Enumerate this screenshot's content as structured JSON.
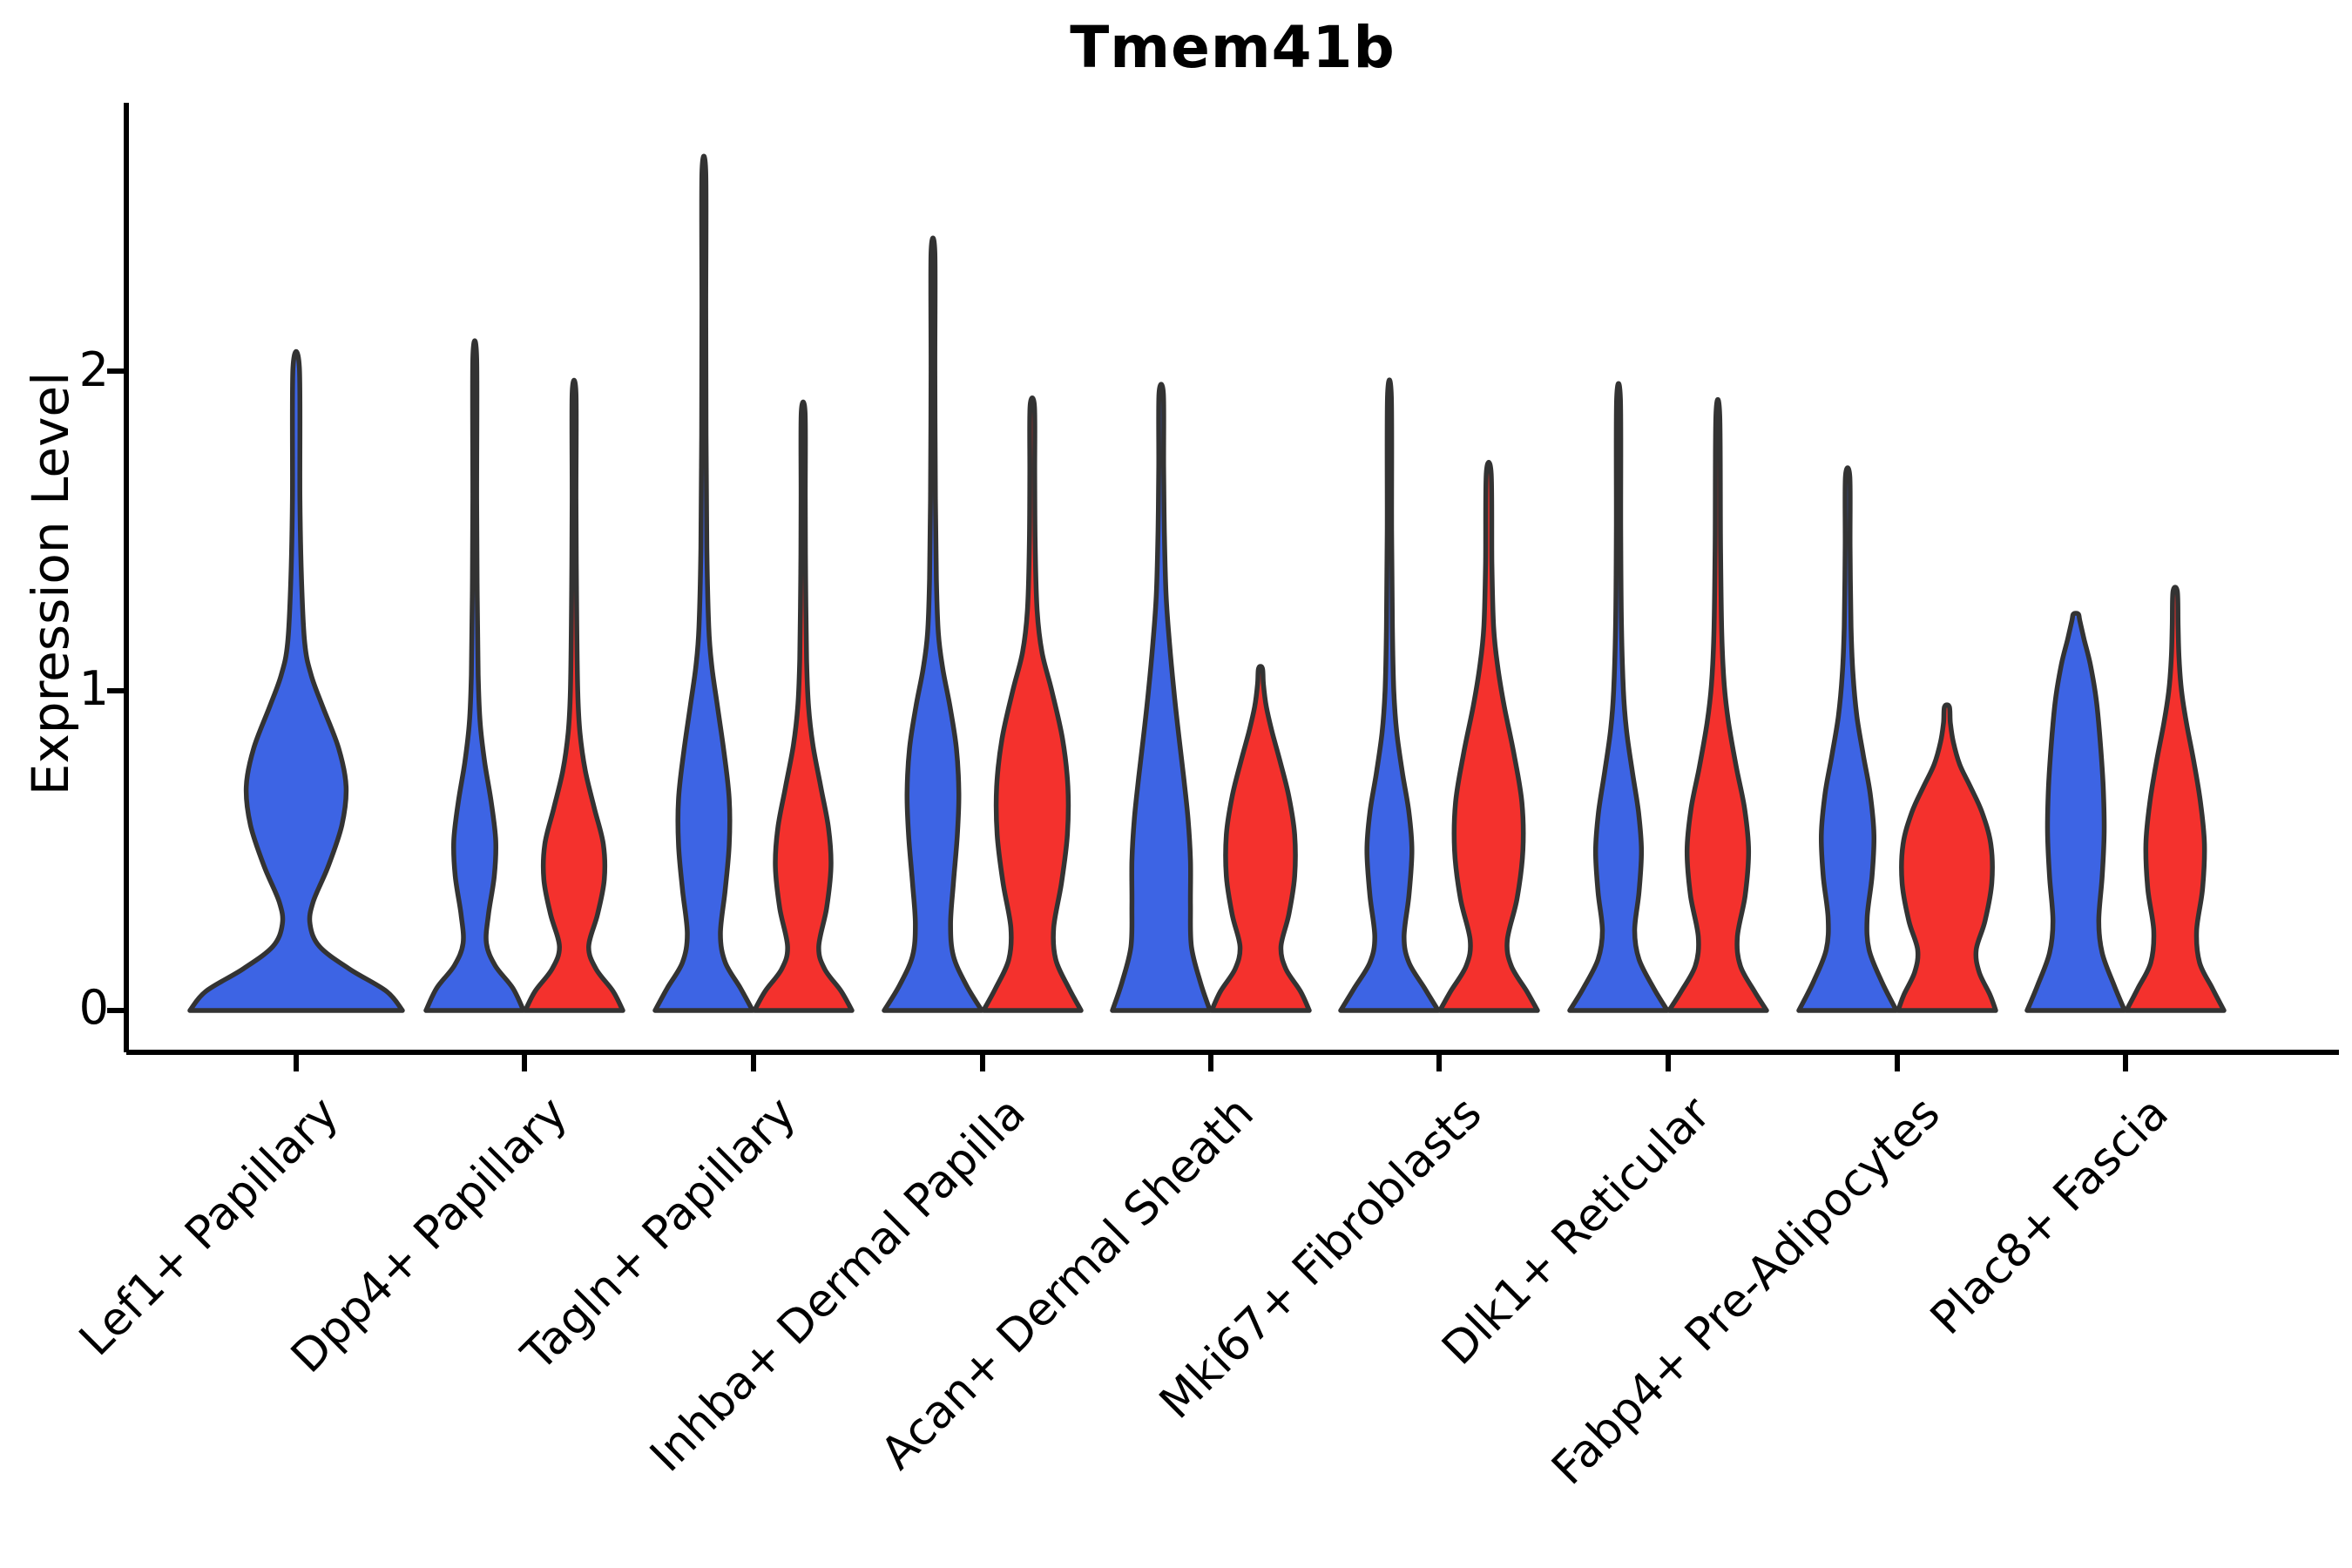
{
  "title": "Tmem41b",
  "axes": {
    "ylabel": "Expression Level",
    "ytick_labels": [
      "0",
      "1",
      "2"
    ]
  },
  "chart_data": {
    "type": "violin",
    "title": "Tmem41b",
    "xlabel": "",
    "ylabel": "Expression Level",
    "ylim": [
      0,
      2.75
    ],
    "yticks": [
      0,
      1,
      2
    ],
    "grid": false,
    "legend": "none",
    "categories": [
      "Lef1+ Papillary",
      "Dpp4+ Papillary",
      "Tagln+ Papillary",
      "Inhba+ Dermal Papilla",
      "Acan+ Dermal Sheath",
      "Mki67+ Fibroblasts",
      "Dlk1+ Reticular",
      "Fabp4+ Pre-Adipocytes",
      "Plac8+ Fascia"
    ],
    "series": [
      {
        "name": "blue",
        "color": "#3D64E4",
        "max_expression": [
          2.01,
          2.04,
          2.62,
          2.37,
          1.93,
          1.92,
          1.91,
          1.67,
          1.24
        ]
      },
      {
        "name": "red",
        "color": "#F4312D",
        "max_expression": [
          null,
          1.93,
          1.87,
          1.89,
          1.07,
          1.68,
          1.86,
          0.95,
          1.31
        ]
      }
    ],
    "outline_color": "#333333",
    "axis_color": "#000000",
    "violins": [
      {
        "category": "Lef1+ Papillary",
        "split": "blue",
        "max": 2.01,
        "wide": true,
        "profile": [
          [
            0,
            1.0
          ],
          [
            0.06,
            0.85
          ],
          [
            0.13,
            0.5
          ],
          [
            0.2,
            0.22
          ],
          [
            0.27,
            0.13
          ],
          [
            0.34,
            0.16
          ],
          [
            0.45,
            0.3
          ],
          [
            0.58,
            0.43
          ],
          [
            0.7,
            0.47
          ],
          [
            0.82,
            0.4
          ],
          [
            0.95,
            0.25
          ],
          [
            1.05,
            0.14
          ],
          [
            1.15,
            0.08
          ],
          [
            1.35,
            0.05
          ],
          [
            1.6,
            0.035
          ],
          [
            2.01,
            0.03
          ]
        ]
      },
      {
        "category": "Dpp4+ Papillary",
        "split": "blue",
        "max": 2.04,
        "profile": [
          [
            0,
            1.0
          ],
          [
            0.07,
            0.78
          ],
          [
            0.14,
            0.42
          ],
          [
            0.21,
            0.24
          ],
          [
            0.3,
            0.28
          ],
          [
            0.42,
            0.4
          ],
          [
            0.53,
            0.43
          ],
          [
            0.65,
            0.34
          ],
          [
            0.78,
            0.2
          ],
          [
            0.9,
            0.11
          ],
          [
            1.05,
            0.07
          ],
          [
            1.3,
            0.05
          ],
          [
            1.6,
            0.04
          ],
          [
            2.04,
            0.035
          ]
        ]
      },
      {
        "category": "Dpp4+ Papillary",
        "split": "red",
        "max": 1.93,
        "profile": [
          [
            0,
            1.0
          ],
          [
            0.06,
            0.8
          ],
          [
            0.13,
            0.45
          ],
          [
            0.2,
            0.3
          ],
          [
            0.3,
            0.48
          ],
          [
            0.41,
            0.62
          ],
          [
            0.52,
            0.6
          ],
          [
            0.63,
            0.42
          ],
          [
            0.75,
            0.23
          ],
          [
            0.87,
            0.12
          ],
          [
            1.0,
            0.075
          ],
          [
            1.3,
            0.05
          ],
          [
            1.6,
            0.04
          ],
          [
            1.93,
            0.035
          ]
        ]
      },
      {
        "category": "Tagln+ Papillary",
        "split": "blue",
        "max": 2.62,
        "profile": [
          [
            0,
            1.0
          ],
          [
            0.07,
            0.75
          ],
          [
            0.15,
            0.44
          ],
          [
            0.24,
            0.34
          ],
          [
            0.38,
            0.44
          ],
          [
            0.52,
            0.52
          ],
          [
            0.66,
            0.52
          ],
          [
            0.8,
            0.42
          ],
          [
            0.95,
            0.28
          ],
          [
            1.08,
            0.16
          ],
          [
            1.2,
            0.1
          ],
          [
            1.45,
            0.06
          ],
          [
            1.8,
            0.045
          ],
          [
            2.2,
            0.04
          ],
          [
            2.62,
            0.035
          ]
        ]
      },
      {
        "category": "Tagln+ Papillary",
        "split": "red",
        "max": 1.87,
        "profile": [
          [
            0,
            1.0
          ],
          [
            0.06,
            0.78
          ],
          [
            0.13,
            0.44
          ],
          [
            0.2,
            0.32
          ],
          [
            0.32,
            0.48
          ],
          [
            0.45,
            0.57
          ],
          [
            0.57,
            0.52
          ],
          [
            0.7,
            0.36
          ],
          [
            0.83,
            0.2
          ],
          [
            0.95,
            0.11
          ],
          [
            1.1,
            0.07
          ],
          [
            1.35,
            0.05
          ],
          [
            1.6,
            0.042
          ],
          [
            1.87,
            0.038
          ]
        ]
      },
      {
        "category": "Inhba+ Dermal Papilla",
        "split": "blue",
        "max": 2.37,
        "profile": [
          [
            0,
            1.0
          ],
          [
            0.08,
            0.68
          ],
          [
            0.17,
            0.42
          ],
          [
            0.27,
            0.36
          ],
          [
            0.4,
            0.42
          ],
          [
            0.55,
            0.5
          ],
          [
            0.68,
            0.53
          ],
          [
            0.82,
            0.48
          ],
          [
            0.95,
            0.35
          ],
          [
            1.07,
            0.2
          ],
          [
            1.18,
            0.11
          ],
          [
            1.35,
            0.07
          ],
          [
            1.6,
            0.05
          ],
          [
            2.0,
            0.04
          ],
          [
            2.37,
            0.035
          ]
        ]
      },
      {
        "category": "Inhba+ Dermal Papilla",
        "split": "red",
        "max": 1.89,
        "profile": [
          [
            0,
            1.0
          ],
          [
            0.07,
            0.75
          ],
          [
            0.16,
            0.48
          ],
          [
            0.26,
            0.44
          ],
          [
            0.4,
            0.6
          ],
          [
            0.55,
            0.72
          ],
          [
            0.7,
            0.73
          ],
          [
            0.85,
            0.62
          ],
          [
            1.0,
            0.4
          ],
          [
            1.12,
            0.2
          ],
          [
            1.25,
            0.1
          ],
          [
            1.45,
            0.06
          ],
          [
            1.68,
            0.05
          ],
          [
            1.89,
            0.045
          ]
        ]
      },
      {
        "category": "Acan+ Dermal Sheath",
        "split": "blue",
        "max": 1.93,
        "profile": [
          [
            0,
            1.0
          ],
          [
            0.09,
            0.8
          ],
          [
            0.2,
            0.62
          ],
          [
            0.33,
            0.6
          ],
          [
            0.47,
            0.6
          ],
          [
            0.6,
            0.55
          ],
          [
            0.73,
            0.46
          ],
          [
            0.86,
            0.36
          ],
          [
            1.0,
            0.26
          ],
          [
            1.15,
            0.17
          ],
          [
            1.3,
            0.1
          ],
          [
            1.5,
            0.065
          ],
          [
            1.7,
            0.05
          ],
          [
            1.93,
            0.045
          ]
        ]
      },
      {
        "category": "Acan+ Dermal Sheath",
        "split": "red",
        "max": 1.07,
        "profile": [
          [
            0,
            1.0
          ],
          [
            0.06,
            0.82
          ],
          [
            0.13,
            0.52
          ],
          [
            0.2,
            0.42
          ],
          [
            0.3,
            0.58
          ],
          [
            0.42,
            0.7
          ],
          [
            0.55,
            0.7
          ],
          [
            0.67,
            0.58
          ],
          [
            0.78,
            0.4
          ],
          [
            0.87,
            0.24
          ],
          [
            0.95,
            0.12
          ],
          [
            1.02,
            0.06
          ],
          [
            1.07,
            0.04
          ]
        ]
      },
      {
        "category": "Mki67+ Fibroblasts",
        "split": "blue",
        "max": 1.92,
        "profile": [
          [
            0,
            1.0
          ],
          [
            0.07,
            0.72
          ],
          [
            0.15,
            0.4
          ],
          [
            0.23,
            0.3
          ],
          [
            0.36,
            0.4
          ],
          [
            0.5,
            0.46
          ],
          [
            0.62,
            0.4
          ],
          [
            0.74,
            0.27
          ],
          [
            0.87,
            0.15
          ],
          [
            1.0,
            0.09
          ],
          [
            1.2,
            0.06
          ],
          [
            1.5,
            0.045
          ],
          [
            1.92,
            0.038
          ]
        ]
      },
      {
        "category": "Mki67+ Fibroblasts",
        "split": "red",
        "max": 1.68,
        "profile": [
          [
            0,
            1.0
          ],
          [
            0.06,
            0.78
          ],
          [
            0.14,
            0.46
          ],
          [
            0.22,
            0.38
          ],
          [
            0.35,
            0.58
          ],
          [
            0.5,
            0.7
          ],
          [
            0.65,
            0.68
          ],
          [
            0.8,
            0.52
          ],
          [
            0.95,
            0.32
          ],
          [
            1.08,
            0.18
          ],
          [
            1.2,
            0.1
          ],
          [
            1.4,
            0.065
          ],
          [
            1.68,
            0.05
          ]
        ]
      },
      {
        "category": "Dlk1+ Reticular",
        "split": "blue",
        "max": 1.91,
        "profile": [
          [
            0,
            1.0
          ],
          [
            0.07,
            0.72
          ],
          [
            0.16,
            0.42
          ],
          [
            0.25,
            0.33
          ],
          [
            0.37,
            0.42
          ],
          [
            0.5,
            0.47
          ],
          [
            0.62,
            0.41
          ],
          [
            0.75,
            0.28
          ],
          [
            0.88,
            0.16
          ],
          [
            1.0,
            0.1
          ],
          [
            1.2,
            0.06
          ],
          [
            1.5,
            0.045
          ],
          [
            1.91,
            0.038
          ]
        ]
      },
      {
        "category": "Dlk1+ Reticular",
        "split": "red",
        "max": 1.86,
        "profile": [
          [
            0,
            1.0
          ],
          [
            0.06,
            0.75
          ],
          [
            0.14,
            0.46
          ],
          [
            0.23,
            0.4
          ],
          [
            0.36,
            0.56
          ],
          [
            0.5,
            0.63
          ],
          [
            0.63,
            0.55
          ],
          [
            0.76,
            0.38
          ],
          [
            0.9,
            0.22
          ],
          [
            1.02,
            0.13
          ],
          [
            1.18,
            0.08
          ],
          [
            1.45,
            0.055
          ],
          [
            1.86,
            0.04
          ]
        ]
      },
      {
        "category": "Fabp4+ Pre-Adipocytes",
        "split": "blue",
        "max": 1.67,
        "profile": [
          [
            0,
            1.0
          ],
          [
            0.09,
            0.7
          ],
          [
            0.19,
            0.44
          ],
          [
            0.29,
            0.4
          ],
          [
            0.42,
            0.5
          ],
          [
            0.55,
            0.54
          ],
          [
            0.68,
            0.46
          ],
          [
            0.8,
            0.32
          ],
          [
            0.92,
            0.19
          ],
          [
            1.05,
            0.11
          ],
          [
            1.2,
            0.07
          ],
          [
            1.45,
            0.05
          ],
          [
            1.67,
            0.045
          ]
        ]
      },
      {
        "category": "Fabp4+ Pre-Adipocytes",
        "split": "red",
        "max": 0.95,
        "profile": [
          [
            0,
            1.0
          ],
          [
            0.05,
            0.88
          ],
          [
            0.12,
            0.66
          ],
          [
            0.19,
            0.6
          ],
          [
            0.28,
            0.78
          ],
          [
            0.4,
            0.92
          ],
          [
            0.52,
            0.9
          ],
          [
            0.62,
            0.72
          ],
          [
            0.7,
            0.48
          ],
          [
            0.77,
            0.26
          ],
          [
            0.84,
            0.13
          ],
          [
            0.9,
            0.07
          ],
          [
            0.95,
            0.05
          ]
        ]
      },
      {
        "category": "Plac8+ Fascia",
        "split": "blue",
        "max": 1.24,
        "profile": [
          [
            0,
            1.0
          ],
          [
            0.08,
            0.78
          ],
          [
            0.18,
            0.54
          ],
          [
            0.28,
            0.47
          ],
          [
            0.42,
            0.54
          ],
          [
            0.56,
            0.58
          ],
          [
            0.7,
            0.56
          ],
          [
            0.84,
            0.5
          ],
          [
            0.97,
            0.42
          ],
          [
            1.08,
            0.3
          ],
          [
            1.16,
            0.17
          ],
          [
            1.22,
            0.08
          ],
          [
            1.24,
            0.05
          ]
        ]
      },
      {
        "category": "Plac8+ Fascia",
        "split": "red",
        "max": 1.31,
        "profile": [
          [
            0,
            1.0
          ],
          [
            0.07,
            0.76
          ],
          [
            0.15,
            0.5
          ],
          [
            0.25,
            0.44
          ],
          [
            0.38,
            0.56
          ],
          [
            0.52,
            0.6
          ],
          [
            0.65,
            0.52
          ],
          [
            0.78,
            0.38
          ],
          [
            0.9,
            0.23
          ],
          [
            1.0,
            0.13
          ],
          [
            1.1,
            0.08
          ],
          [
            1.2,
            0.06
          ],
          [
            1.31,
            0.045
          ]
        ]
      }
    ]
  }
}
